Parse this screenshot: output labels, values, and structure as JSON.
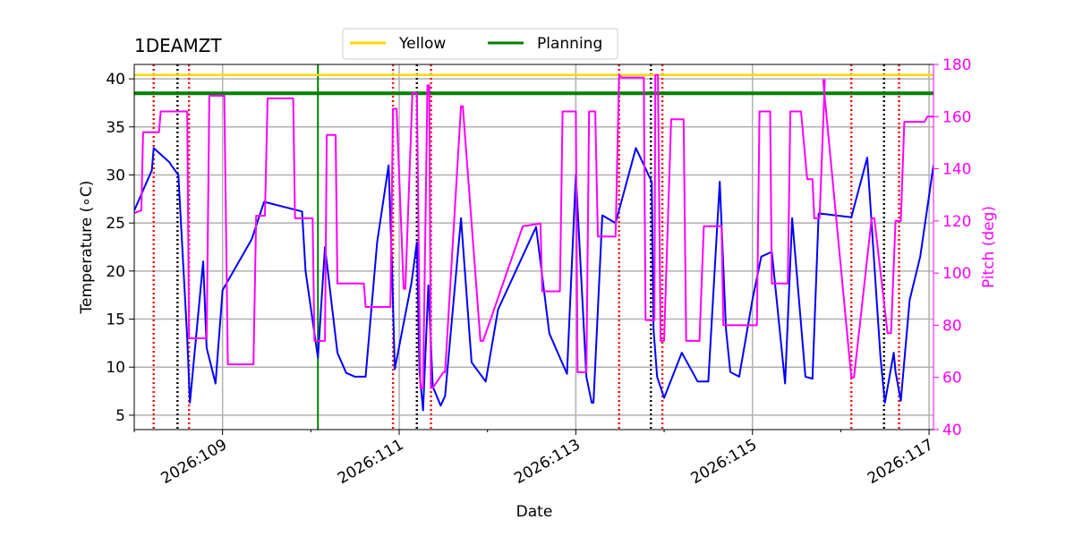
{
  "chart_data": {
    "type": "line",
    "title": "1DEAMZT",
    "xlabel": "Date",
    "ylabel": "Temperature ($^\\circ$C)",
    "ylabel_display": "Temperature (∘C)",
    "y2label": "Pitch (deg)",
    "xlim": [
      108.0,
      117.05
    ],
    "ylim": [
      3.5,
      41.5
    ],
    "y2lim": [
      40,
      180
    ],
    "x_ticks": [
      109,
      111,
      113,
      115,
      117
    ],
    "x_tick_labels": [
      "2026:109",
      "2026:111",
      "2026:113",
      "2026:115",
      "2026:117"
    ],
    "y_ticks": [
      5,
      10,
      15,
      20,
      25,
      30,
      35,
      40
    ],
    "y2_ticks": [
      40,
      60,
      80,
      100,
      120,
      140,
      160,
      180
    ],
    "grid": true,
    "legend_position": "top-center",
    "legend": [
      {
        "name": "Yellow",
        "color": "#FFD700"
      },
      {
        "name": "Planning",
        "color": "#008000"
      }
    ],
    "limits": [
      {
        "name": "Yellow",
        "value": 40.4,
        "color": "#FFD700"
      },
      {
        "name": "Planning",
        "value": 38.5,
        "color": "#008000"
      }
    ],
    "planning_vline": {
      "x": 110.08,
      "color": "#008000"
    },
    "red_dotted_vlines": [
      108.22,
      108.62,
      110.93,
      111.36,
      113.49,
      113.98,
      116.12,
      116.66
    ],
    "black_dotted_vlines": [
      108.49,
      111.2,
      113.85,
      116.49
    ],
    "series": [
      {
        "name": "1DEAMZT temperature",
        "axis": "left",
        "color": "#0000FF",
        "x": [
          108.0,
          108.2,
          108.22,
          108.4,
          108.42,
          108.5,
          108.6,
          108.63,
          108.78,
          108.82,
          108.92,
          109.0,
          109.33,
          109.47,
          109.9,
          109.94,
          110.08,
          110.16,
          110.3,
          110.4,
          110.5,
          110.62,
          110.75,
          110.88,
          110.92,
          110.95,
          111.14,
          111.2,
          111.23,
          111.27,
          111.33,
          111.38,
          111.47,
          111.52,
          111.7,
          111.82,
          111.98,
          112.12,
          112.55,
          112.7,
          112.9,
          113.0,
          113.12,
          113.18,
          113.2,
          113.3,
          113.45,
          113.68,
          113.86,
          113.88,
          113.92,
          114.0,
          114.2,
          114.38,
          114.5,
          114.63,
          114.7,
          114.75,
          114.85,
          115.0,
          115.1,
          115.22,
          115.37,
          115.45,
          115.6,
          115.68,
          115.75,
          116.12,
          116.3,
          116.45,
          116.5,
          116.6,
          116.62,
          116.68,
          116.78,
          116.9,
          117.05
        ],
        "y": [
          26.3,
          30.5,
          32.8,
          31.3,
          31.0,
          30.0,
          13.0,
          6.3,
          21.0,
          12.0,
          8.3,
          18.0,
          23.3,
          27.2,
          26.2,
          20.0,
          11.0,
          22.5,
          11.5,
          9.4,
          9.0,
          9.0,
          23.0,
          31.0,
          20.0,
          9.8,
          18.8,
          23.0,
          9.5,
          5.5,
          18.5,
          8.0,
          6.0,
          7.0,
          25.5,
          10.5,
          8.5,
          16.0,
          24.6,
          13.5,
          9.3,
          30.0,
          9.0,
          6.3,
          6.3,
          25.8,
          25.0,
          32.8,
          29.3,
          14.0,
          9.0,
          6.8,
          11.5,
          8.5,
          8.5,
          29.3,
          14.0,
          9.5,
          9.0,
          17.0,
          21.5,
          22.0,
          8.3,
          25.5,
          9.0,
          8.8,
          26.0,
          25.6,
          31.8,
          11.0,
          6.3,
          11.5,
          9.5,
          6.5,
          17.0,
          21.5,
          31.0
        ]
      },
      {
        "name": "Pitch",
        "axis": "right",
        "color": "#FF00FF",
        "x": [
          108.0,
          108.08,
          108.1,
          108.28,
          108.3,
          108.6,
          108.62,
          108.82,
          108.85,
          109.02,
          109.06,
          109.35,
          109.38,
          109.48,
          109.51,
          109.8,
          109.82,
          110.02,
          110.04,
          110.16,
          110.18,
          110.28,
          110.3,
          110.6,
          110.62,
          110.9,
          110.93,
          110.97,
          111.05,
          111.07,
          111.15,
          111.2,
          111.24,
          111.27,
          111.32,
          111.34,
          111.36,
          111.38,
          111.5,
          111.52,
          111.7,
          111.72,
          111.92,
          111.95,
          112.4,
          112.6,
          112.62,
          112.82,
          112.85,
          113.0,
          113.02,
          113.12,
          113.15,
          113.22,
          113.25,
          113.45,
          113.49,
          113.52,
          113.65,
          113.77,
          113.79,
          113.89,
          113.9,
          113.93,
          113.96,
          114.0,
          114.08,
          114.22,
          114.25,
          114.4,
          114.45,
          114.6,
          114.63,
          114.65,
          114.67,
          115.05,
          115.08,
          115.2,
          115.22,
          115.4,
          115.43,
          115.55,
          115.62,
          115.68,
          115.7,
          115.76,
          115.82,
          115.8,
          116.12,
          116.15,
          116.35,
          116.38,
          116.53,
          116.57,
          116.62,
          116.68,
          116.72,
          116.95,
          116.98,
          117.05
        ],
        "y": [
          123,
          124,
          154,
          154,
          162,
          162,
          75,
          75,
          168,
          168,
          65,
          65,
          122,
          122,
          167,
          167,
          121,
          121,
          74,
          74,
          153,
          153,
          96,
          96,
          87,
          87,
          163,
          163,
          94,
          94,
          169,
          169,
          56,
          56,
          172,
          172,
          56,
          56,
          62,
          62,
          164,
          164,
          74,
          74,
          118,
          119,
          93,
          93,
          162,
          162,
          62,
          62,
          162,
          162,
          114,
          114,
          176,
          175,
          175,
          175,
          82,
          82,
          176,
          176,
          74,
          74,
          159,
          159,
          74,
          74,
          118,
          118,
          118,
          118,
          80,
          80,
          162,
          162,
          96,
          96,
          162,
          162,
          136,
          136,
          121,
          121,
          174,
          174,
          60,
          60,
          121,
          121,
          77,
          77,
          120,
          120,
          158,
          158,
          160,
          160
        ]
      }
    ]
  }
}
